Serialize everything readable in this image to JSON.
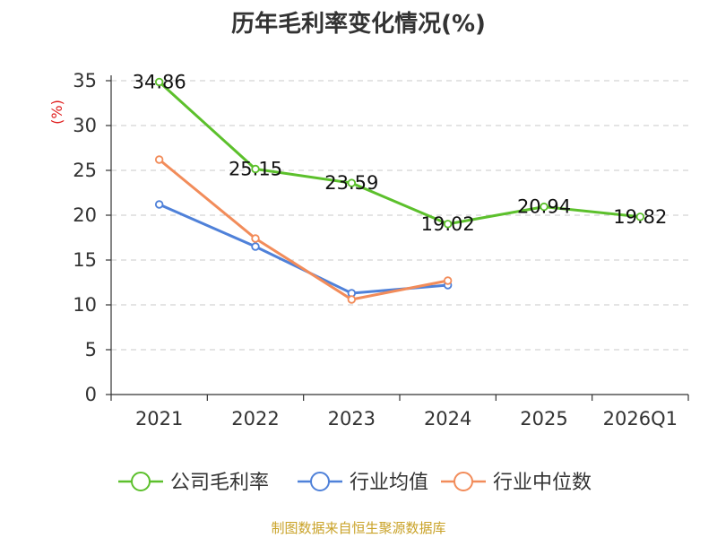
{
  "chart_data": {
    "type": "line",
    "title": "历年毛利率变化情况(%)",
    "ylabel": "(%)",
    "xlabel": "",
    "categories": [
      "2021",
      "2022",
      "2023",
      "2024",
      "2025",
      "2026Q1"
    ],
    "ylim": [
      0,
      35
    ],
    "yticks": [
      0,
      5,
      10,
      15,
      20,
      25,
      30,
      35
    ],
    "grid": true,
    "legend_position": "bottom",
    "series": [
      {
        "name": "公司毛利率",
        "color": "#5cc02c",
        "values": [
          34.86,
          25.15,
          23.59,
          19.02,
          20.94,
          19.82
        ],
        "labels": [
          "34.86",
          "25.15",
          "23.59",
          "19.02",
          "20.94",
          "19.82"
        ]
      },
      {
        "name": "行业均值",
        "color": "#4f81d9",
        "values": [
          21.2,
          16.5,
          11.3,
          12.2,
          null,
          null
        ]
      },
      {
        "name": "行业中位数",
        "color": "#f28c5a",
        "values": [
          26.2,
          17.4,
          10.6,
          12.7,
          null,
          null
        ]
      }
    ]
  },
  "source": "制图数据来自恒生聚源数据库"
}
